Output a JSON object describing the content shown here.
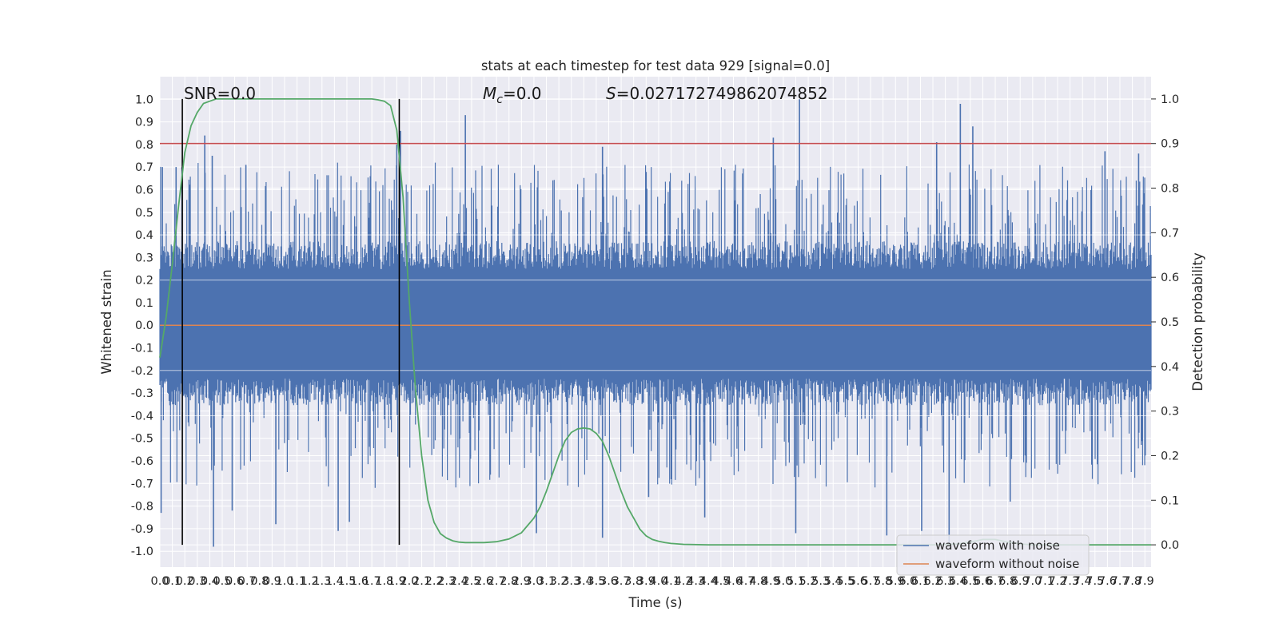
{
  "chart_data": {
    "type": "line",
    "title": "stats at each timestep for test data 929 [signal=0.0]",
    "xlabel": "Time (s)",
    "ylabel": "Whitened strain",
    "y2label": "Detection probability",
    "xlim": [
      0.0,
      7.95
    ],
    "ylim": [
      -1.07,
      1.1
    ],
    "y2lim": [
      -0.05,
      1.05
    ],
    "xticks": [
      "0.0",
      "0.1",
      "0.2",
      "0.3",
      "0.4",
      "0.5",
      "0.6",
      "0.7",
      "0.8",
      "0.9",
      "1.0",
      "1.1",
      "1.2",
      "1.3",
      "1.4",
      "1.5",
      "1.6",
      "1.7",
      "1.8",
      "1.9",
      "2.0",
      "2.1",
      "2.2",
      "2.3",
      "2.4",
      "2.5",
      "2.6",
      "2.7",
      "2.8",
      "2.9",
      "3.0",
      "3.1",
      "3.2",
      "3.3",
      "3.4",
      "3.5",
      "3.6",
      "3.7",
      "3.8",
      "3.9",
      "4.0",
      "4.1",
      "4.2",
      "4.3",
      "4.4",
      "4.5",
      "4.6",
      "4.7",
      "4.8",
      "4.9",
      "5.0",
      "5.1",
      "5.2",
      "5.3",
      "5.4",
      "5.5",
      "5.6",
      "5.7",
      "5.8",
      "5.9",
      "6.0",
      "6.1",
      "6.2",
      "6.3",
      "6.4",
      "6.5",
      "6.6",
      "6.7",
      "6.8",
      "6.9",
      "7.0",
      "7.1",
      "7.2",
      "7.3",
      "7.4",
      "7.5",
      "7.6",
      "7.7",
      "7.8",
      "7.9"
    ],
    "yticks": [
      "1.0",
      "0.9",
      "0.8",
      "0.7",
      "0.6",
      "0.5",
      "0.4",
      "0.3",
      "0.2",
      "0.1",
      "0.0",
      "-0.1",
      "-0.2",
      "-0.3",
      "-0.4",
      "-0.5",
      "-0.6",
      "-0.7",
      "-0.8",
      "-0.9",
      "-1.0"
    ],
    "y2ticks": [
      "1.0",
      "0.9",
      "0.8",
      "0.7",
      "0.6",
      "0.5",
      "0.4",
      "0.3",
      "0.2",
      "0.1",
      "0.0"
    ],
    "annotations": {
      "snr": "SNR=0.0",
      "mc_symbol": "M",
      "mc_sub": "c",
      "mc_value": "=0.0",
      "s_symbol": "S",
      "s_value": "=0.027172749862074852"
    },
    "threshold": {
      "axis": "y2",
      "value": 0.9,
      "color": "#c44e52"
    },
    "vlines": {
      "x": [
        0.18,
        1.92
      ],
      "color": "#000000"
    },
    "series": [
      {
        "name": "waveform with noise",
        "color": "#4c72b0",
        "envelope": {
          "x": [
            0.0,
            7.95
          ],
          "upper_typical": 0.4,
          "lower_typical": -0.38
        },
        "extreme_peaks": [
          [
            0.02,
            0.7
          ],
          [
            0.13,
            0.7
          ],
          [
            0.36,
            0.84
          ],
          [
            0.42,
            0.75
          ],
          [
            0.69,
            0.71
          ],
          [
            1.9,
            0.8
          ],
          [
            1.93,
            0.86
          ],
          [
            2.45,
            0.93
          ],
          [
            3.55,
            0.79
          ],
          [
            4.92,
            0.83
          ],
          [
            5.13,
            1.0
          ],
          [
            6.23,
            0.81
          ],
          [
            6.42,
            0.98
          ],
          [
            6.52,
            0.88
          ],
          [
            7.58,
            0.77
          ],
          [
            7.85,
            0.76
          ]
        ],
        "extreme_troughs": [
          [
            0.01,
            -0.83
          ],
          [
            0.43,
            -0.98
          ],
          [
            0.58,
            -0.82
          ],
          [
            0.93,
            -0.88
          ],
          [
            1.43,
            -0.91
          ],
          [
            1.52,
            -0.87
          ],
          [
            3.02,
            -0.92
          ],
          [
            3.55,
            -0.94
          ],
          [
            3.92,
            -0.76
          ],
          [
            4.37,
            -0.85
          ],
          [
            5.1,
            -0.92
          ],
          [
            5.83,
            -0.93
          ],
          [
            6.11,
            -0.91
          ],
          [
            6.33,
            -0.97
          ],
          [
            6.82,
            -0.78
          ]
        ]
      },
      {
        "name": "waveform without noise",
        "color": "#dd8452",
        "x": [
          0.0,
          7.95
        ],
        "values": [
          0.0,
          0.0
        ]
      },
      {
        "name": "Detection probability",
        "axis": "y2",
        "color": "#55a868",
        "x": [
          0.0,
          0.05,
          0.1,
          0.15,
          0.2,
          0.25,
          0.3,
          0.35,
          0.4,
          0.45,
          0.5,
          0.6,
          0.8,
          1.0,
          1.2,
          1.4,
          1.6,
          1.7,
          1.75,
          1.8,
          1.85,
          1.9,
          1.95,
          2.0,
          2.05,
          2.1,
          2.15,
          2.2,
          2.25,
          2.3,
          2.35,
          2.4,
          2.45,
          2.5,
          2.6,
          2.7,
          2.8,
          2.9,
          3.0,
          3.05,
          3.1,
          3.15,
          3.2,
          3.25,
          3.3,
          3.35,
          3.4,
          3.45,
          3.5,
          3.55,
          3.6,
          3.65,
          3.7,
          3.75,
          3.8,
          3.85,
          3.9,
          3.95,
          4.0,
          4.05,
          4.1,
          4.2,
          4.4,
          4.8,
          5.2,
          5.6,
          6.0,
          6.2,
          6.4,
          6.5,
          6.6,
          6.7,
          6.8,
          6.9,
          7.0,
          7.2,
          7.5,
          7.95
        ],
        "values": [
          0.42,
          0.51,
          0.63,
          0.76,
          0.88,
          0.94,
          0.97,
          0.99,
          0.995,
          1.0,
          1.0,
          1.0,
          1.0,
          1.0,
          1.0,
          1.0,
          1.0,
          1.0,
          0.998,
          0.995,
          0.985,
          0.93,
          0.78,
          0.55,
          0.35,
          0.2,
          0.1,
          0.05,
          0.025,
          0.015,
          0.009,
          0.006,
          0.005,
          0.005,
          0.005,
          0.007,
          0.013,
          0.027,
          0.06,
          0.085,
          0.12,
          0.16,
          0.2,
          0.233,
          0.252,
          0.26,
          0.262,
          0.26,
          0.25,
          0.232,
          0.2,
          0.16,
          0.12,
          0.085,
          0.06,
          0.035,
          0.02,
          0.012,
          0.008,
          0.005,
          0.003,
          0.001,
          0.0,
          0.0,
          0.0,
          0.0,
          0.0,
          0.0,
          0.002,
          0.006,
          0.012,
          0.012,
          0.006,
          0.002,
          0.0,
          0.0,
          0.0,
          0.0
        ]
      }
    ],
    "legend": {
      "position": "lower-right",
      "entries": [
        {
          "label": "waveform with noise",
          "color": "#4c72b0"
        },
        {
          "label": "waveform without noise",
          "color": "#dd8452"
        }
      ]
    },
    "style": {
      "axes_background": "#eaeaf2",
      "grid_color": "#ffffff",
      "grid": true,
      "text_color": "#262626"
    }
  }
}
